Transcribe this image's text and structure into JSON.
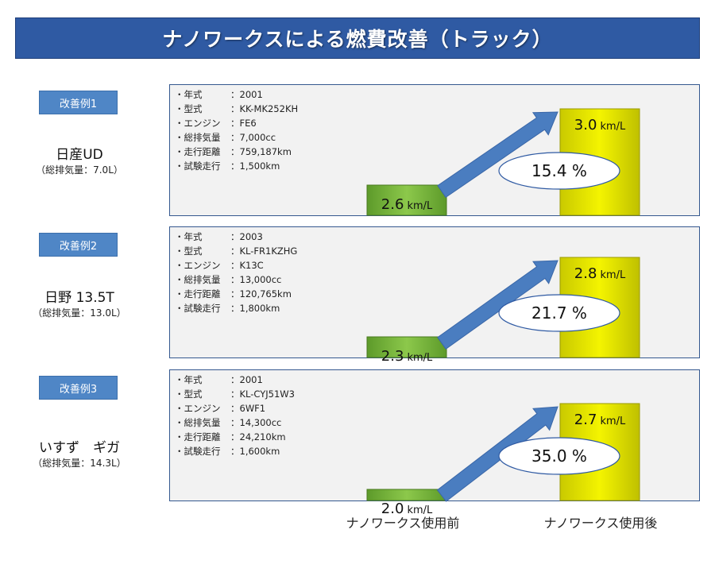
{
  "title": "ナノワークスによる燃費改善（トラック）",
  "colors": {
    "title_bg": "#2f5aa3",
    "tag_bg": "#4f86c6",
    "before_bar": "#7cb742",
    "after_bar": "#e3e600",
    "arrow": "#4a7dc0"
  },
  "cases": [
    {
      "tag": "改善例1",
      "name": "日産UD",
      "displacement": "（総排気量：7.0L）",
      "specs": [
        {
          "key": "・年式",
          "value": "：2001"
        },
        {
          "key": "・型式",
          "value": "：KK-MK252KH"
        },
        {
          "key": "・エンジン",
          "value": "：FE6"
        },
        {
          "key": "・総排気量",
          "value": "：7,000cc"
        },
        {
          "key": "・走行距離",
          "value": "：759,187km"
        },
        {
          "key": "・試験走行",
          "value": "：1,500km"
        }
      ],
      "before_label": "2.6",
      "after_label": "3.0",
      "unit": "km/L",
      "improvement": "15.4 %"
    },
    {
      "tag": "改善例2",
      "name": "日野 13.5T",
      "displacement": "（総排気量：13.0L）",
      "specs": [
        {
          "key": "・年式",
          "value": "：2003"
        },
        {
          "key": "・型式",
          "value": "：KL-FR1KZHG"
        },
        {
          "key": "・エンジン",
          "value": "：K13C"
        },
        {
          "key": "・総排気量",
          "value": "：13,000cc"
        },
        {
          "key": "・走行距離",
          "value": "：120,765km"
        },
        {
          "key": "・試験走行",
          "value": "：1,800km"
        }
      ],
      "before_label": "2.3",
      "after_label": "2.8",
      "unit": "km/L",
      "improvement": "21.7 %"
    },
    {
      "tag": "改善例3",
      "name": "いすず　ギガ",
      "displacement": "（総排気量：14.3L）",
      "specs": [
        {
          "key": "・年式",
          "value": "：2001"
        },
        {
          "key": "・型式",
          "value": "：KL-CYJ51W3"
        },
        {
          "key": "・エンジン",
          "value": "：6WF1"
        },
        {
          "key": "・総排気量",
          "value": "：14,300cc"
        },
        {
          "key": "・走行距離",
          "value": "：24,210km"
        },
        {
          "key": "・試験走行",
          "value": "：1,600km"
        }
      ],
      "before_label": "2.0",
      "after_label": "2.7",
      "unit": "km/L",
      "improvement": "35.0 %"
    }
  ],
  "xlabels": {
    "before": "ナノワークス使用前",
    "after": "ナノワークス使用後"
  },
  "chart_data": [
    {
      "type": "bar",
      "categories": [
        "ナノワークス使用前",
        "ナノワークス使用後"
      ],
      "values": [
        2.6,
        3.0
      ],
      "unit": "km/L",
      "annotation": "15.4 %"
    },
    {
      "type": "bar",
      "categories": [
        "ナノワークス使用前",
        "ナノワークス使用後"
      ],
      "values": [
        2.3,
        2.8
      ],
      "unit": "km/L",
      "annotation": "21.7 %"
    },
    {
      "type": "bar",
      "categories": [
        "ナノワークス使用前",
        "ナノワークス使用後"
      ],
      "values": [
        2.0,
        2.7
      ],
      "unit": "km/L",
      "annotation": "35.0 %"
    }
  ]
}
